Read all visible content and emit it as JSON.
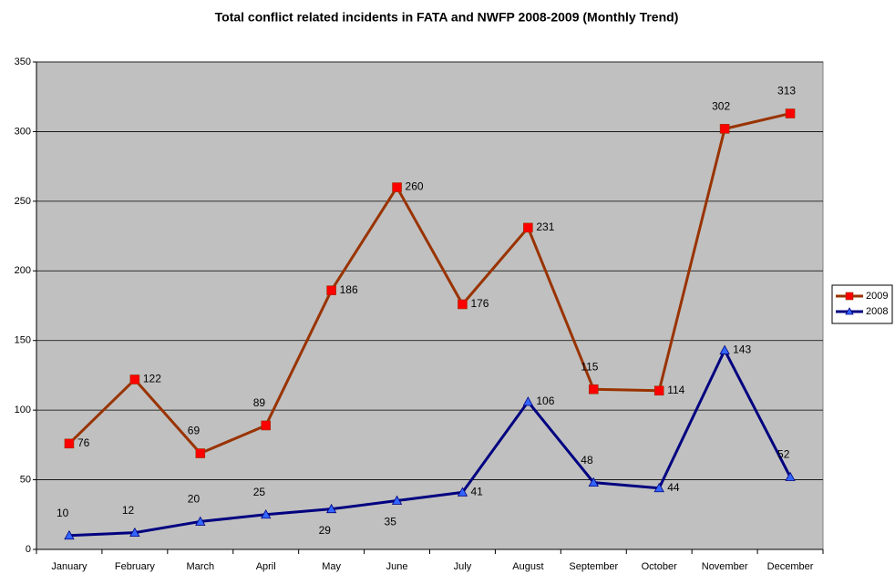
{
  "chart_data": {
    "type": "line",
    "title": "Total conflict related incidents in FATA and NWFP 2008-2009 (Monthly Trend)",
    "categories": [
      "January",
      "February",
      "March",
      "April",
      "May",
      "June",
      "July",
      "August",
      "September",
      "October",
      "November",
      "December"
    ],
    "series": [
      {
        "name": "2009",
        "color": "#993300",
        "marker_color": "#ff0000",
        "marker": "square",
        "values": [
          76,
          122,
          69,
          89,
          186,
          260,
          176,
          231,
          115,
          114,
          302,
          313
        ]
      },
      {
        "name": "2008",
        "color": "#000080",
        "marker_color": "#3366ff",
        "marker": "triangle",
        "values": [
          10,
          12,
          20,
          25,
          29,
          35,
          41,
          106,
          48,
          44,
          143,
          52
        ]
      }
    ],
    "ylim": [
      0,
      350
    ],
    "yticks": [
      0,
      50,
      100,
      150,
      200,
      250,
      300,
      350
    ],
    "grid": true,
    "legend": "right",
    "plot_background": "#c0c0c0"
  }
}
